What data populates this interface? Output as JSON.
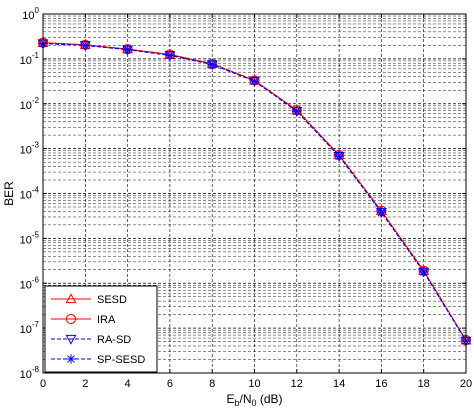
{
  "chart_data": {
    "type": "line",
    "xlabel_parts": [
      "E",
      "b",
      "/N",
      "0",
      " (dB)"
    ],
    "ylabel": "BER",
    "xlim": [
      0,
      20
    ],
    "ylim": [
      1e-08,
      1
    ],
    "y_scale": "log",
    "x_ticks": [
      "0",
      "2",
      "4",
      "6",
      "8",
      "10",
      "12",
      "14",
      "16",
      "18",
      "20"
    ],
    "y_ticks": [
      {
        "base": "10",
        "exp": "0",
        "value": 1
      },
      {
        "base": "10",
        "exp": "-1",
        "value": 0.1
      },
      {
        "base": "10",
        "exp": "-2",
        "value": 0.01
      },
      {
        "base": "10",
        "exp": "-3",
        "value": 0.001
      },
      {
        "base": "10",
        "exp": "-4",
        "value": 0.0001
      },
      {
        "base": "10",
        "exp": "-5",
        "value": 1e-05
      },
      {
        "base": "10",
        "exp": "-6",
        "value": 1e-06
      },
      {
        "base": "10",
        "exp": "-7",
        "value": 1e-07
      },
      {
        "base": "10",
        "exp": "-8",
        "value": 1e-08
      }
    ],
    "grid": true,
    "legend_position": "bottom-left",
    "x": [
      0,
      2,
      4,
      6,
      8,
      10,
      12,
      14,
      16,
      18,
      20
    ],
    "series": [
      {
        "name": "SESD",
        "color": "#ff0000",
        "dash": "solid",
        "marker": "triangle-up",
        "values": [
          0.23,
          0.205,
          0.165,
          0.125,
          0.078,
          0.033,
          0.0072,
          0.00072,
          4.1e-05,
          1.9e-06,
          5.4e-08
        ]
      },
      {
        "name": "IRA",
        "color": "#ff0000",
        "dash": "solid",
        "marker": "circle",
        "values": [
          0.23,
          0.205,
          0.165,
          0.125,
          0.078,
          0.033,
          0.0072,
          0.00072,
          4.1e-05,
          1.9e-06,
          5.4e-08
        ]
      },
      {
        "name": "RA-SD",
        "color": "#0000ff",
        "dash": "dashed",
        "marker": "triangle-down",
        "values": [
          0.22,
          0.2,
          0.16,
          0.12,
          0.075,
          0.032,
          0.0068,
          0.00068,
          3.8e-05,
          1.8e-06,
          5.2e-08
        ]
      },
      {
        "name": "SP-SESD",
        "color": "#0000ff",
        "dash": "dashed",
        "marker": "star",
        "values": [
          0.22,
          0.2,
          0.16,
          0.12,
          0.075,
          0.032,
          0.0068,
          0.00068,
          3.8e-05,
          1.8e-06,
          5.2e-08
        ]
      }
    ]
  }
}
